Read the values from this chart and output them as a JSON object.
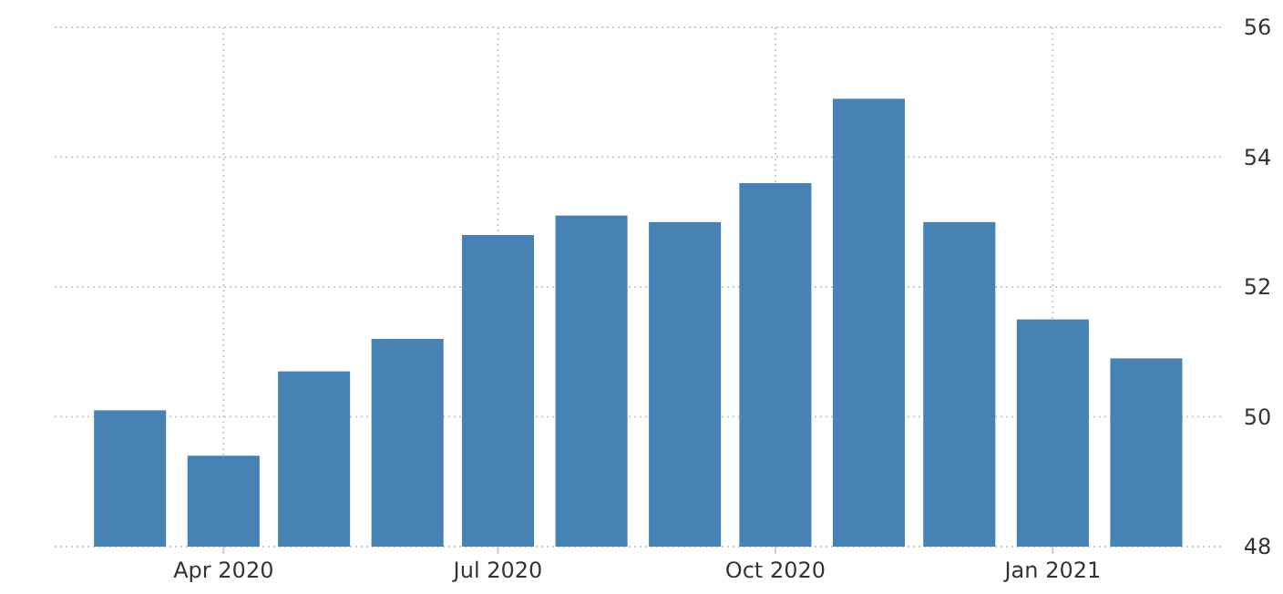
{
  "chart_data": {
    "type": "bar",
    "x": [
      "2020-03",
      "2020-04",
      "2020-05",
      "2020-06",
      "2020-07",
      "2020-08",
      "2020-09",
      "2020-10",
      "2020-11",
      "2020-12",
      "2021-01",
      "2021-02"
    ],
    "values": [
      50.1,
      49.4,
      50.7,
      51.2,
      52.8,
      53.1,
      53.0,
      53.6,
      54.9,
      53.0,
      51.5,
      50.9
    ],
    "color": "#4682b4",
    "xlim": [
      "2020-02-05",
      "2021-02-27"
    ],
    "xticks": [
      {
        "value": "2020-04",
        "label": "Apr 2020"
      },
      {
        "value": "2020-07",
        "label": "Jul 2020"
      },
      {
        "value": "2020-10",
        "label": "Oct 2020"
      },
      {
        "value": "2021-01",
        "label": "Jan 2021"
      }
    ],
    "ylim": [
      48,
      56
    ],
    "yticks": [
      48,
      50,
      52,
      54,
      56
    ],
    "grid": true
  }
}
